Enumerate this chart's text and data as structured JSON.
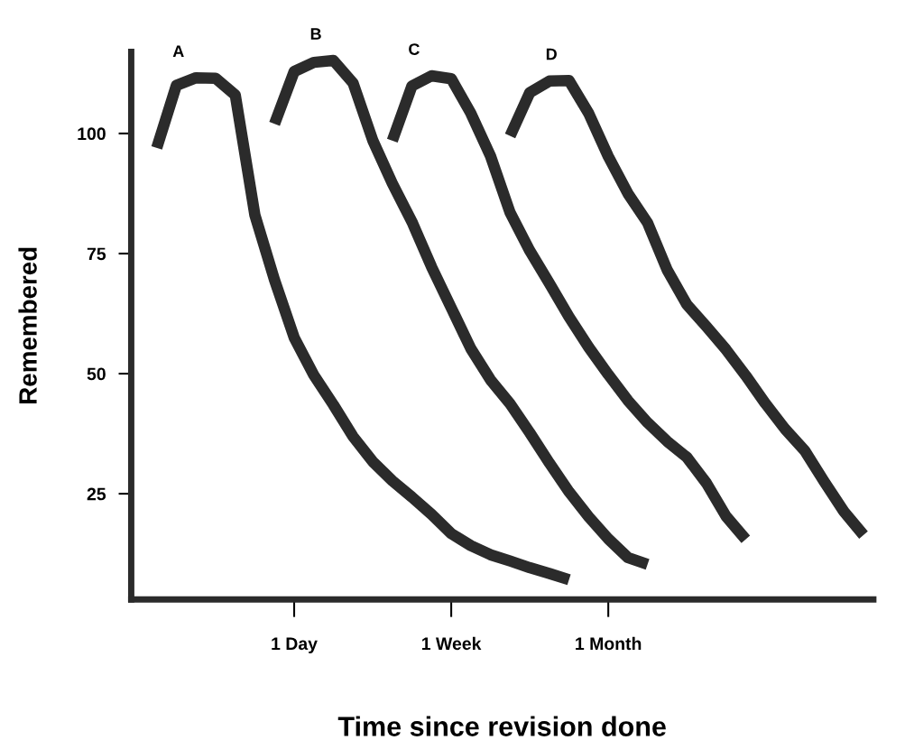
{
  "chart_data": {
    "type": "line",
    "xlabel": "Time since revision done",
    "ylabel": "Remembered",
    "categories": [
      null,
      null,
      null,
      null,
      null,
      null,
      null,
      null,
      "1 Day",
      null,
      null,
      null,
      null,
      null,
      null,
      null,
      "1 Week",
      null,
      null,
      null,
      null,
      null,
      null,
      null,
      "1 Month",
      null,
      null,
      null,
      null,
      null,
      null,
      null,
      null,
      null,
      null,
      null,
      null,
      null
    ],
    "ylim": [
      3,
      117
    ],
    "yticks": [
      25,
      50,
      75,
      100
    ],
    "grid": false,
    "legend": false,
    "marker": "none",
    "line_style": "solid",
    "series": [
      {
        "name": "A",
        "color": "#2b2b2b",
        "values": [
          null,
          97,
          110,
          111.6,
          111.5,
          108,
          83,
          69.5,
          57.5,
          49.7,
          43.5,
          36.9,
          31.7,
          27.7,
          24.3,
          20.7,
          16.7,
          14.2,
          12.3,
          11.0,
          9.6,
          8.4,
          7.1,
          null,
          null,
          null,
          null,
          null,
          null,
          null,
          null,
          null,
          null,
          null,
          null,
          null,
          null,
          null
        ]
      },
      {
        "name": "B",
        "color": "#2b2b2b",
        "values": [
          null,
          null,
          null,
          null,
          null,
          null,
          null,
          102,
          112.9,
          114.8,
          115.2,
          110.5,
          98.6,
          89.6,
          81.6,
          72.2,
          63.7,
          55.2,
          48.7,
          43.7,
          37.7,
          31.4,
          25.4,
          20.2,
          15.6,
          11.7,
          10.3,
          null,
          null,
          null,
          null,
          null,
          null,
          null,
          null,
          null,
          null,
          null
        ]
      },
      {
        "name": "C",
        "color": "#2b2b2b",
        "values": [
          null,
          null,
          null,
          null,
          null,
          null,
          null,
          null,
          null,
          null,
          null,
          null,
          null,
          98.5,
          109.9,
          112,
          111.4,
          104.2,
          95.3,
          83.5,
          75.6,
          68.8,
          61.8,
          55.5,
          49.8,
          44.4,
          39.8,
          35.9,
          32.6,
          27.2,
          20.3,
          15.5,
          null,
          null,
          null,
          null,
          null,
          null
        ]
      },
      {
        "name": "D",
        "color": "#2b2b2b",
        "values": [
          null,
          null,
          null,
          null,
          null,
          null,
          null,
          null,
          null,
          null,
          null,
          null,
          null,
          null,
          null,
          null,
          null,
          null,
          null,
          99.5,
          108.5,
          110.9,
          111,
          104.2,
          95.2,
          87.5,
          81.4,
          71.6,
          64.4,
          59.8,
          55,
          49.6,
          43.8,
          38.5,
          34,
          27.5,
          21.3,
          16.4
        ]
      }
    ]
  }
}
